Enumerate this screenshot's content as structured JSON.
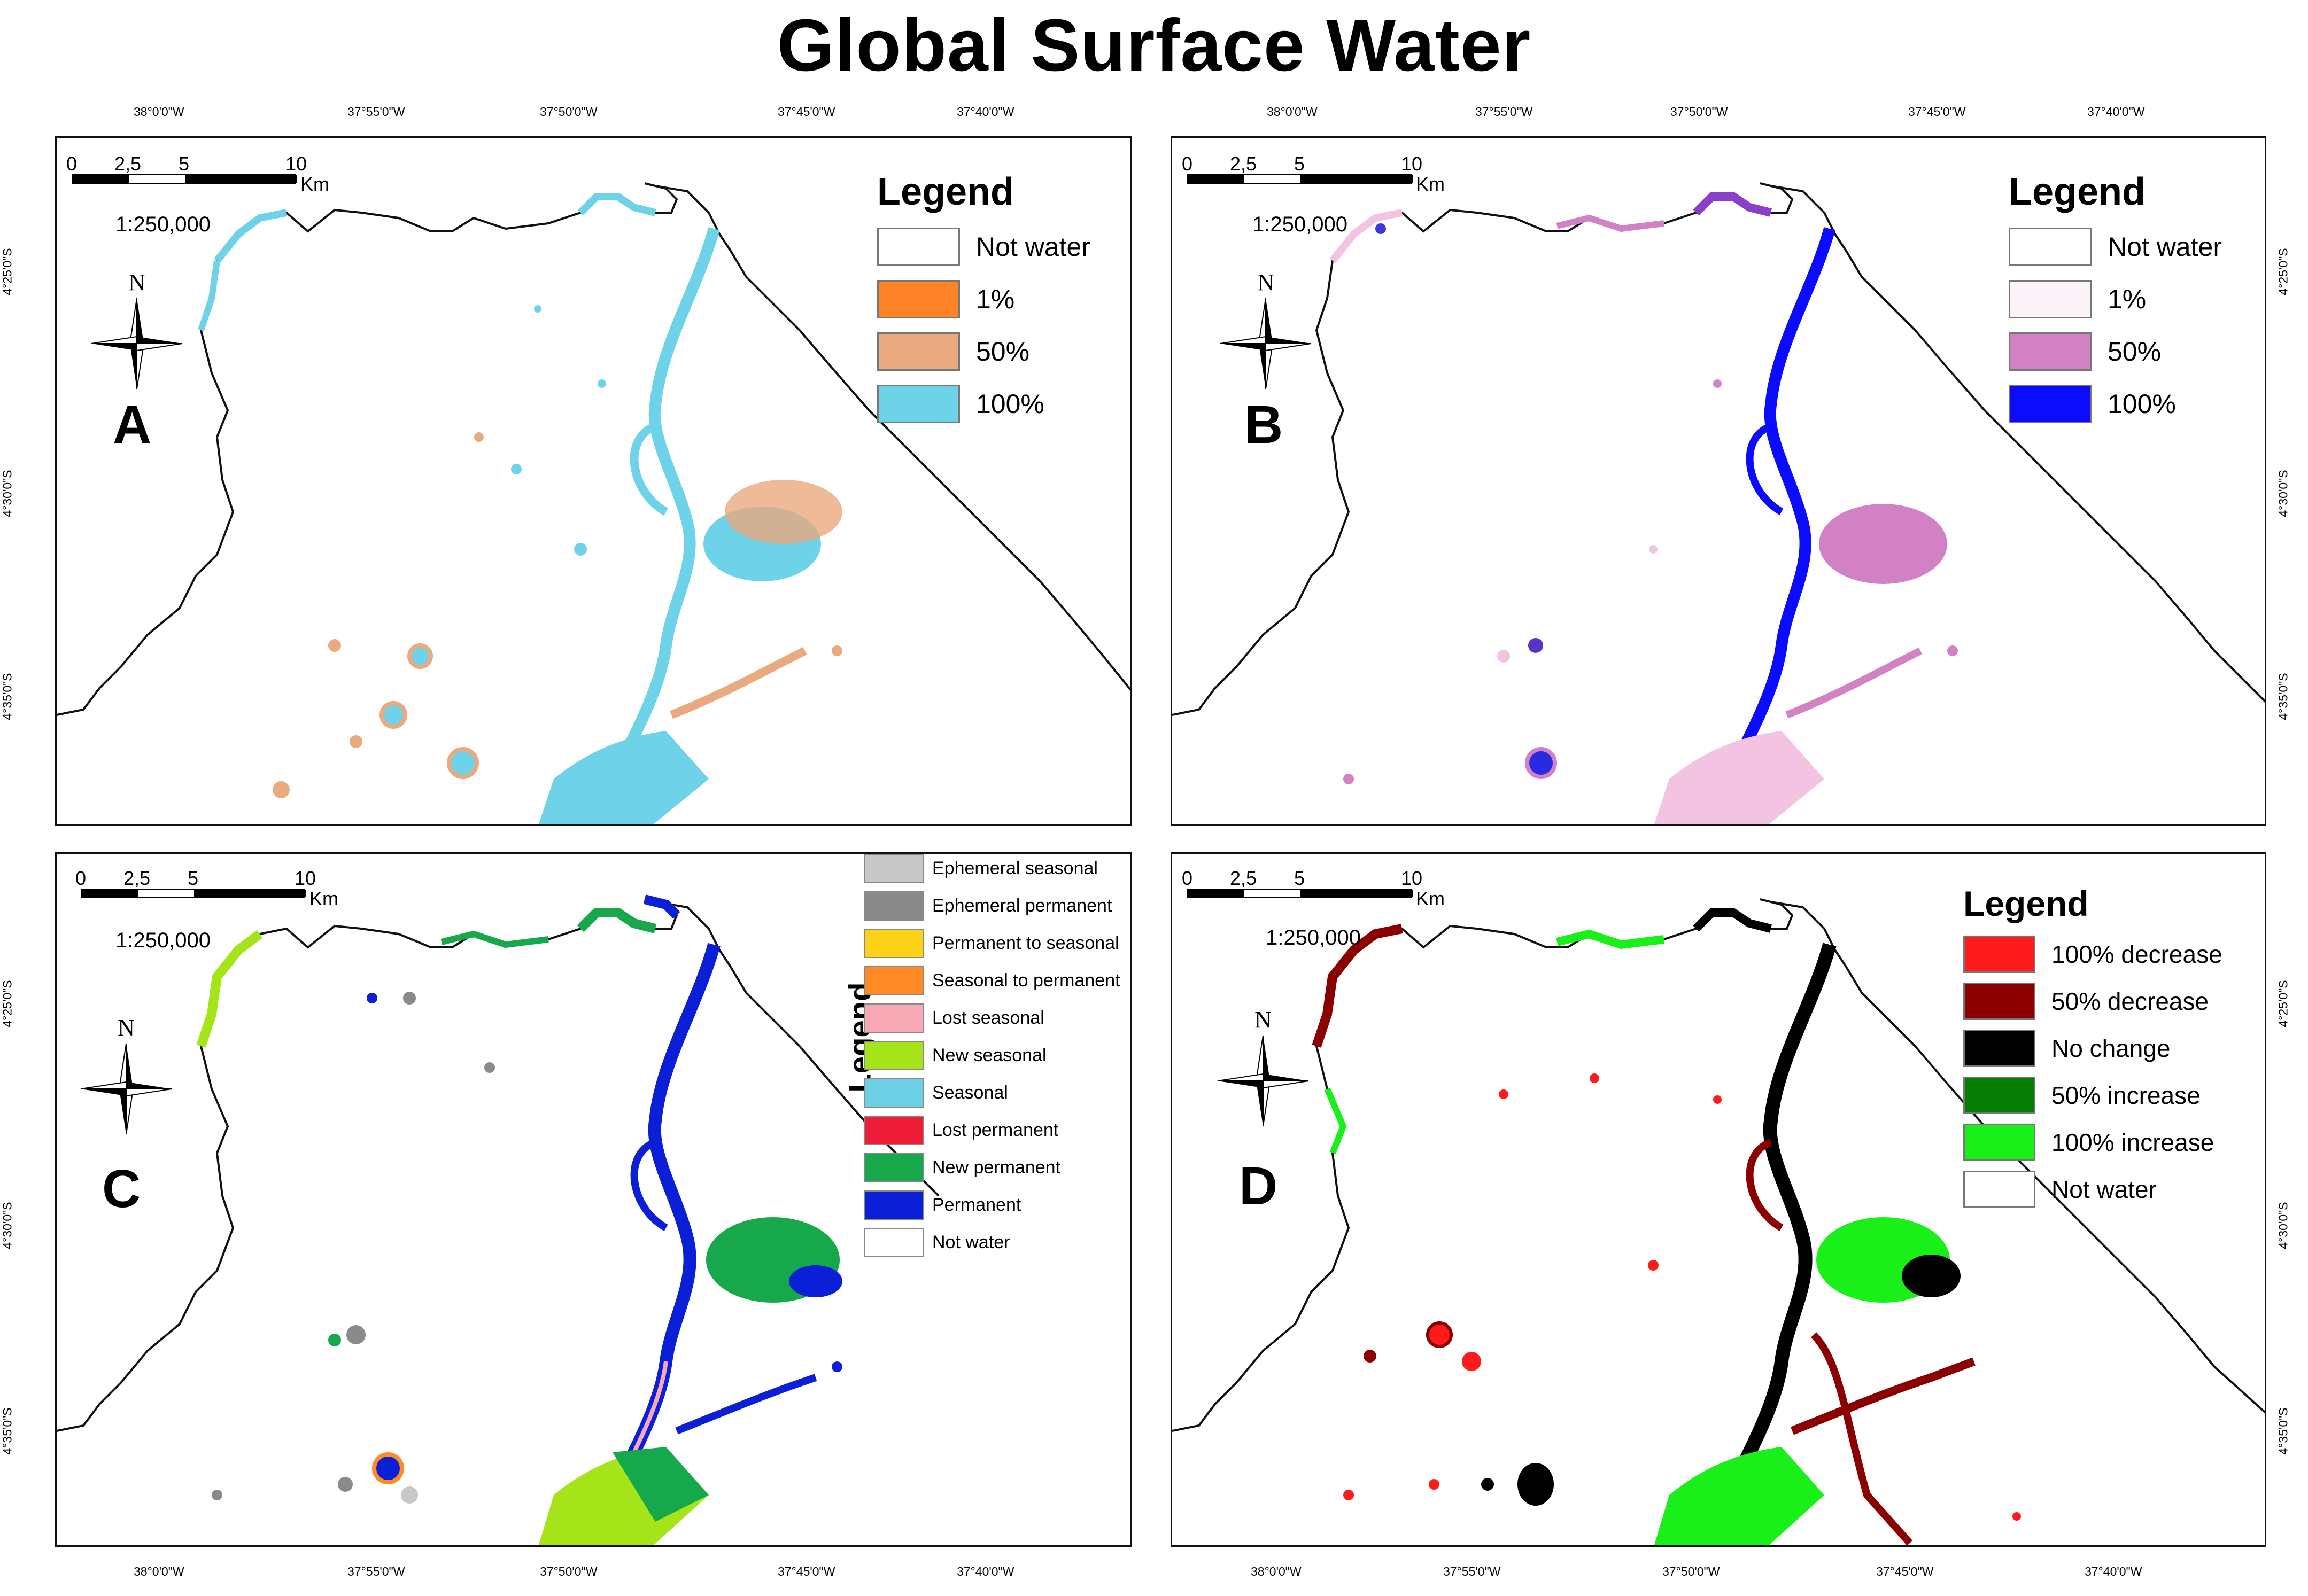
{
  "title": "Global Surface Water",
  "top_lon_labels": [
    "38°0'0\"W",
    "37°55'0\"W",
    "37°50'0\"W",
    "37°45'0\"W",
    "37°40'0\"W"
  ],
  "bottom_lon_labels": [
    "38°0'0\"W",
    "37°55'0\"W",
    "37°50'0\"W",
    "37°45'0\"W",
    "37°40'0\"W"
  ],
  "lat_labels": [
    "4°25'0\"S",
    "4°30'0\"S",
    "4°35'0\"S"
  ],
  "scalebar": {
    "n0": "0",
    "n1": "2,5",
    "n2": "5",
    "n3": "10",
    "unit": "Km",
    "ratio": "1:250,000"
  },
  "north_label": "N",
  "colors": {
    "coast": "#111111",
    "frame": "#111111"
  },
  "panels": {
    "A": {
      "letter": "A",
      "legend_title": "Legend",
      "legend": [
        {
          "label": "Not water",
          "color": "#ffffff"
        },
        {
          "label": "1%",
          "color": "#ff8427"
        },
        {
          "label": "50%",
          "color": "#eaa97e"
        },
        {
          "label": "100%",
          "color": "#6ed3e8"
        }
      ]
    },
    "B": {
      "letter": "B",
      "legend_title": "Legend",
      "legend": [
        {
          "label": "Not water",
          "color": "#ffffff"
        },
        {
          "label": "1%",
          "color": "#fcf4f8"
        },
        {
          "label": "50%",
          "color": "#d381c5"
        },
        {
          "label": "100%",
          "color": "#0b0bff"
        }
      ]
    },
    "C": {
      "letter": "C",
      "legend_title": "Legend",
      "legend": [
        {
          "label": "Ephemeral seasonal",
          "color": "#c8c8c8"
        },
        {
          "label": "Ephemeral permanent",
          "color": "#8a8a8a"
        },
        {
          "label": "Permanent to seasonal",
          "color": "#ffd21a"
        },
        {
          "label": "Seasonal to permanent",
          "color": "#ff8a26"
        },
        {
          "label": "Lost seasonal",
          "color": "#f7a9b6"
        },
        {
          "label": "New seasonal",
          "color": "#a6e41a"
        },
        {
          "label": "Seasonal",
          "color": "#6ccfe4"
        },
        {
          "label": "Lost permanent",
          "color": "#ee1c36"
        },
        {
          "label": "New permanent",
          "color": "#16a84a"
        },
        {
          "label": "Permanent",
          "color": "#0a1fd6"
        },
        {
          "label": "Not water",
          "color": "#ffffff"
        }
      ]
    },
    "D": {
      "letter": "D",
      "legend_title": "Legend",
      "legend": [
        {
          "label": "100% decrease",
          "color": "#ff1b1b"
        },
        {
          "label": "50% decrease",
          "color": "#8b0000"
        },
        {
          "label": "No change",
          "color": "#000000"
        },
        {
          "label": "50% increase",
          "color": "#067e06"
        },
        {
          "label": "100% increase",
          "color": "#19f019"
        },
        {
          "label": "Not water",
          "color": "#ffffff"
        }
      ]
    }
  }
}
